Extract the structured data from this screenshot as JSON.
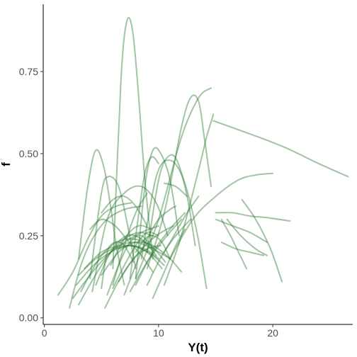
{
  "chart_data": {
    "type": "line",
    "title": "",
    "xlabel": "Y(t)",
    "ylabel": "f",
    "xlim": [
      -0.1,
      27.0
    ],
    "ylim": [
      -0.02,
      0.955
    ],
    "x_ticks": [
      0,
      10,
      20
    ],
    "x_tick_labels": [
      "0",
      "10",
      "20"
    ],
    "y_ticks": [
      0.0,
      0.25,
      0.5,
      0.75
    ],
    "y_tick_labels": [
      "0.00",
      "0.25",
      "0.50",
      "0.75"
    ],
    "grid": false,
    "legend": "none",
    "line_color": "#2e7d32",
    "line_opacity": 0.45,
    "series": [
      {
        "x": [
          6.0,
          6.7,
          7.2,
          7.7,
          8.2,
          8.8,
          9.5
        ],
        "y": [
          0.15,
          0.72,
          0.9,
          0.88,
          0.7,
          0.42,
          0.18
        ]
      },
      {
        "x": [
          9.0,
          10.5,
          12.0,
          12.8,
          13.5,
          14.0,
          14.6
        ],
        "y": [
          0.15,
          0.32,
          0.58,
          0.67,
          0.66,
          0.55,
          0.4
        ]
      },
      {
        "x": [
          8.0,
          10.0,
          12.0,
          13.5,
          14.6
        ],
        "y": [
          0.12,
          0.3,
          0.55,
          0.67,
          0.7
        ]
      },
      {
        "x": [
          10.5,
          12.0,
          13.5,
          14.2,
          14.8
        ],
        "y": [
          0.1,
          0.25,
          0.45,
          0.55,
          0.62
        ]
      },
      {
        "x": [
          14.8,
          18.0,
          21.0,
          24.0,
          26.6
        ],
        "y": [
          0.6,
          0.56,
          0.52,
          0.47,
          0.43
        ]
      },
      {
        "x": [
          11.0,
          13.0,
          15.0,
          17.0,
          18.5,
          20.0
        ],
        "y": [
          0.18,
          0.3,
          0.37,
          0.42,
          0.435,
          0.44
        ]
      },
      {
        "x": [
          3.0,
          3.8,
          4.5,
          5.2,
          5.8,
          6.3,
          7.0
        ],
        "y": [
          0.18,
          0.4,
          0.51,
          0.46,
          0.34,
          0.22,
          0.1
        ]
      },
      {
        "x": [
          4.0,
          5.0,
          5.6,
          6.5,
          7.3,
          8.0
        ],
        "y": [
          0.12,
          0.38,
          0.43,
          0.4,
          0.28,
          0.15
        ]
      },
      {
        "x": [
          4.2,
          5.5,
          7.0,
          8.5,
          9.8,
          10.8
        ],
        "y": [
          0.08,
          0.3,
          0.38,
          0.4,
          0.35,
          0.25
        ]
      },
      {
        "x": [
          8.0,
          8.8,
          9.5,
          10.2,
          11.0,
          11.8
        ],
        "y": [
          0.12,
          0.4,
          0.51,
          0.5,
          0.42,
          0.25
        ]
      },
      {
        "x": [
          9.0,
          10.0,
          10.8,
          11.6,
          12.5,
          13.2
        ],
        "y": [
          0.2,
          0.42,
          0.49,
          0.48,
          0.37,
          0.22
        ]
      },
      {
        "x": [
          8.5,
          9.8,
          11.0,
          12.2,
          13.3,
          14.2
        ],
        "y": [
          0.18,
          0.43,
          0.48,
          0.42,
          0.27,
          0.09
        ]
      },
      {
        "x": [
          15.0,
          16.5,
          18.0,
          19.5,
          21.5
        ],
        "y": [
          0.32,
          0.32,
          0.31,
          0.305,
          0.295
        ]
      },
      {
        "x": [
          15.0,
          16.5,
          18.0,
          19.5
        ],
        "y": [
          0.3,
          0.28,
          0.26,
          0.23
        ]
      },
      {
        "x": [
          15.5,
          16.3,
          17.0,
          17.7
        ],
        "y": [
          0.3,
          0.25,
          0.2,
          0.15
        ]
      },
      {
        "x": [
          17.3,
          18.5,
          19.8,
          20.8
        ],
        "y": [
          0.36,
          0.3,
          0.21,
          0.11
        ]
      },
      {
        "x": [
          16.0,
          17.2,
          18.5,
          19.5
        ],
        "y": [
          0.3,
          0.25,
          0.21,
          0.19
        ]
      },
      {
        "x": [
          15.5,
          16.8,
          18.0,
          19.2
        ],
        "y": [
          0.23,
          0.21,
          0.2,
          0.19
        ]
      },
      {
        "x": [
          1.2,
          2.5,
          3.8,
          5.0,
          6.3,
          7.6
        ],
        "y": [
          0.07,
          0.14,
          0.24,
          0.31,
          0.34,
          0.35
        ]
      },
      {
        "x": [
          2.2,
          3.2,
          4.2,
          5.5,
          7.0,
          8.5
        ],
        "y": [
          0.03,
          0.16,
          0.24,
          0.3,
          0.33,
          0.34
        ]
      },
      {
        "x": [
          2.5,
          4.0,
          5.5,
          7.0,
          8.5,
          10.0
        ],
        "y": [
          0.06,
          0.13,
          0.19,
          0.23,
          0.26,
          0.28
        ]
      },
      {
        "x": [
          2.8,
          4.3,
          5.8,
          7.3,
          8.8,
          10.0
        ],
        "y": [
          0.1,
          0.16,
          0.2,
          0.22,
          0.21,
          0.18
        ]
      },
      {
        "x": [
          3.0,
          4.5,
          6.0,
          7.5,
          9.0,
          10.3
        ],
        "y": [
          0.13,
          0.18,
          0.21,
          0.22,
          0.2,
          0.15
        ]
      },
      {
        "x": [
          3.5,
          5.0,
          6.5,
          8.0,
          9.5,
          11.0
        ],
        "y": [
          0.15,
          0.2,
          0.22,
          0.23,
          0.21,
          0.18
        ]
      },
      {
        "x": [
          3.2,
          4.8,
          6.3,
          7.8,
          9.3,
          10.6
        ],
        "y": [
          0.08,
          0.18,
          0.23,
          0.24,
          0.22,
          0.17
        ]
      },
      {
        "x": [
          4.5,
          5.8,
          7.2,
          8.5,
          9.8
        ],
        "y": [
          0.1,
          0.2,
          0.25,
          0.24,
          0.19
        ]
      },
      {
        "x": [
          5.0,
          6.5,
          8.0,
          9.5,
          11.0,
          12.0
        ],
        "y": [
          0.13,
          0.2,
          0.23,
          0.22,
          0.18,
          0.14
        ]
      },
      {
        "x": [
          5.0,
          6.0,
          7.0,
          8.0,
          9.0
        ],
        "y": [
          0.32,
          0.36,
          0.37,
          0.34,
          0.28
        ]
      },
      {
        "x": [
          5.5,
          6.5,
          7.5,
          8.5,
          9.5
        ],
        "y": [
          0.07,
          0.16,
          0.23,
          0.25,
          0.21
        ]
      },
      {
        "x": [
          5.3,
          6.8,
          8.3,
          9.8,
          11.3
        ],
        "y": [
          0.03,
          0.13,
          0.2,
          0.25,
          0.28
        ]
      },
      {
        "x": [
          6.0,
          7.0,
          8.0,
          9.0
        ],
        "y": [
          0.1,
          0.22,
          0.32,
          0.38
        ]
      },
      {
        "x": [
          6.0,
          7.0,
          8.0,
          9.0,
          10.0
        ],
        "y": [
          0.09,
          0.16,
          0.22,
          0.26,
          0.25
        ]
      },
      {
        "x": [
          5.8,
          7.0,
          8.2,
          9.4
        ],
        "y": [
          0.16,
          0.24,
          0.28,
          0.27
        ]
      },
      {
        "x": [
          7.5,
          9.0,
          10.5,
          12.0
        ],
        "y": [
          0.08,
          0.17,
          0.24,
          0.3
        ]
      },
      {
        "x": [
          8.0,
          9.5,
          11.0,
          12.3
        ],
        "y": [
          0.1,
          0.2,
          0.27,
          0.32
        ]
      },
      {
        "x": [
          9.0,
          10.3,
          11.5,
          12.8
        ],
        "y": [
          0.1,
          0.19,
          0.25,
          0.3
        ]
      },
      {
        "x": [
          9.5,
          10.5,
          11.5,
          12.3
        ],
        "y": [
          0.06,
          0.14,
          0.22,
          0.27
        ]
      },
      {
        "x": [
          6.5,
          7.8,
          9.0,
          10.2
        ],
        "y": [
          0.11,
          0.18,
          0.21,
          0.22
        ]
      },
      {
        "x": [
          5.0,
          5.5,
          6.2,
          7.0,
          7.8
        ],
        "y": [
          0.09,
          0.2,
          0.23,
          0.22,
          0.17
        ]
      },
      {
        "x": [
          4.0,
          5.0,
          6.2,
          7.2,
          8.5,
          9.5
        ],
        "y": [
          0.27,
          0.3,
          0.28,
          0.24,
          0.19,
          0.14
        ]
      },
      {
        "x": [
          3.0,
          4.3,
          5.6,
          7.0,
          8.3,
          9.5
        ],
        "y": [
          0.04,
          0.12,
          0.19,
          0.24,
          0.26,
          0.25
        ]
      },
      {
        "x": [
          10.5,
          11.5,
          12.5,
          13.5
        ],
        "y": [
          0.2,
          0.26,
          0.32,
          0.37
        ]
      },
      {
        "x": [
          10.5,
          11.5,
          12.5
        ],
        "y": [
          0.41,
          0.4,
          0.37
        ]
      },
      {
        "x": [
          8.0,
          8.8,
          9.5,
          10.3,
          11.0
        ],
        "y": [
          0.2,
          0.24,
          0.25,
          0.23,
          0.18
        ]
      },
      {
        "x": [
          7.0,
          8.0,
          9.0,
          10.0,
          11.0,
          11.5
        ],
        "y": [
          0.07,
          0.16,
          0.24,
          0.3,
          0.33,
          0.34
        ]
      },
      {
        "x": [
          6.5,
          7.5,
          8.5,
          9.5,
          10.5
        ],
        "y": [
          0.21,
          0.22,
          0.21,
          0.19,
          0.16
        ]
      },
      {
        "x": [
          7.5,
          8.2,
          8.8,
          9.4,
          10.0
        ],
        "y": [
          0.12,
          0.3,
          0.44,
          0.49,
          0.47
        ]
      }
    ]
  }
}
